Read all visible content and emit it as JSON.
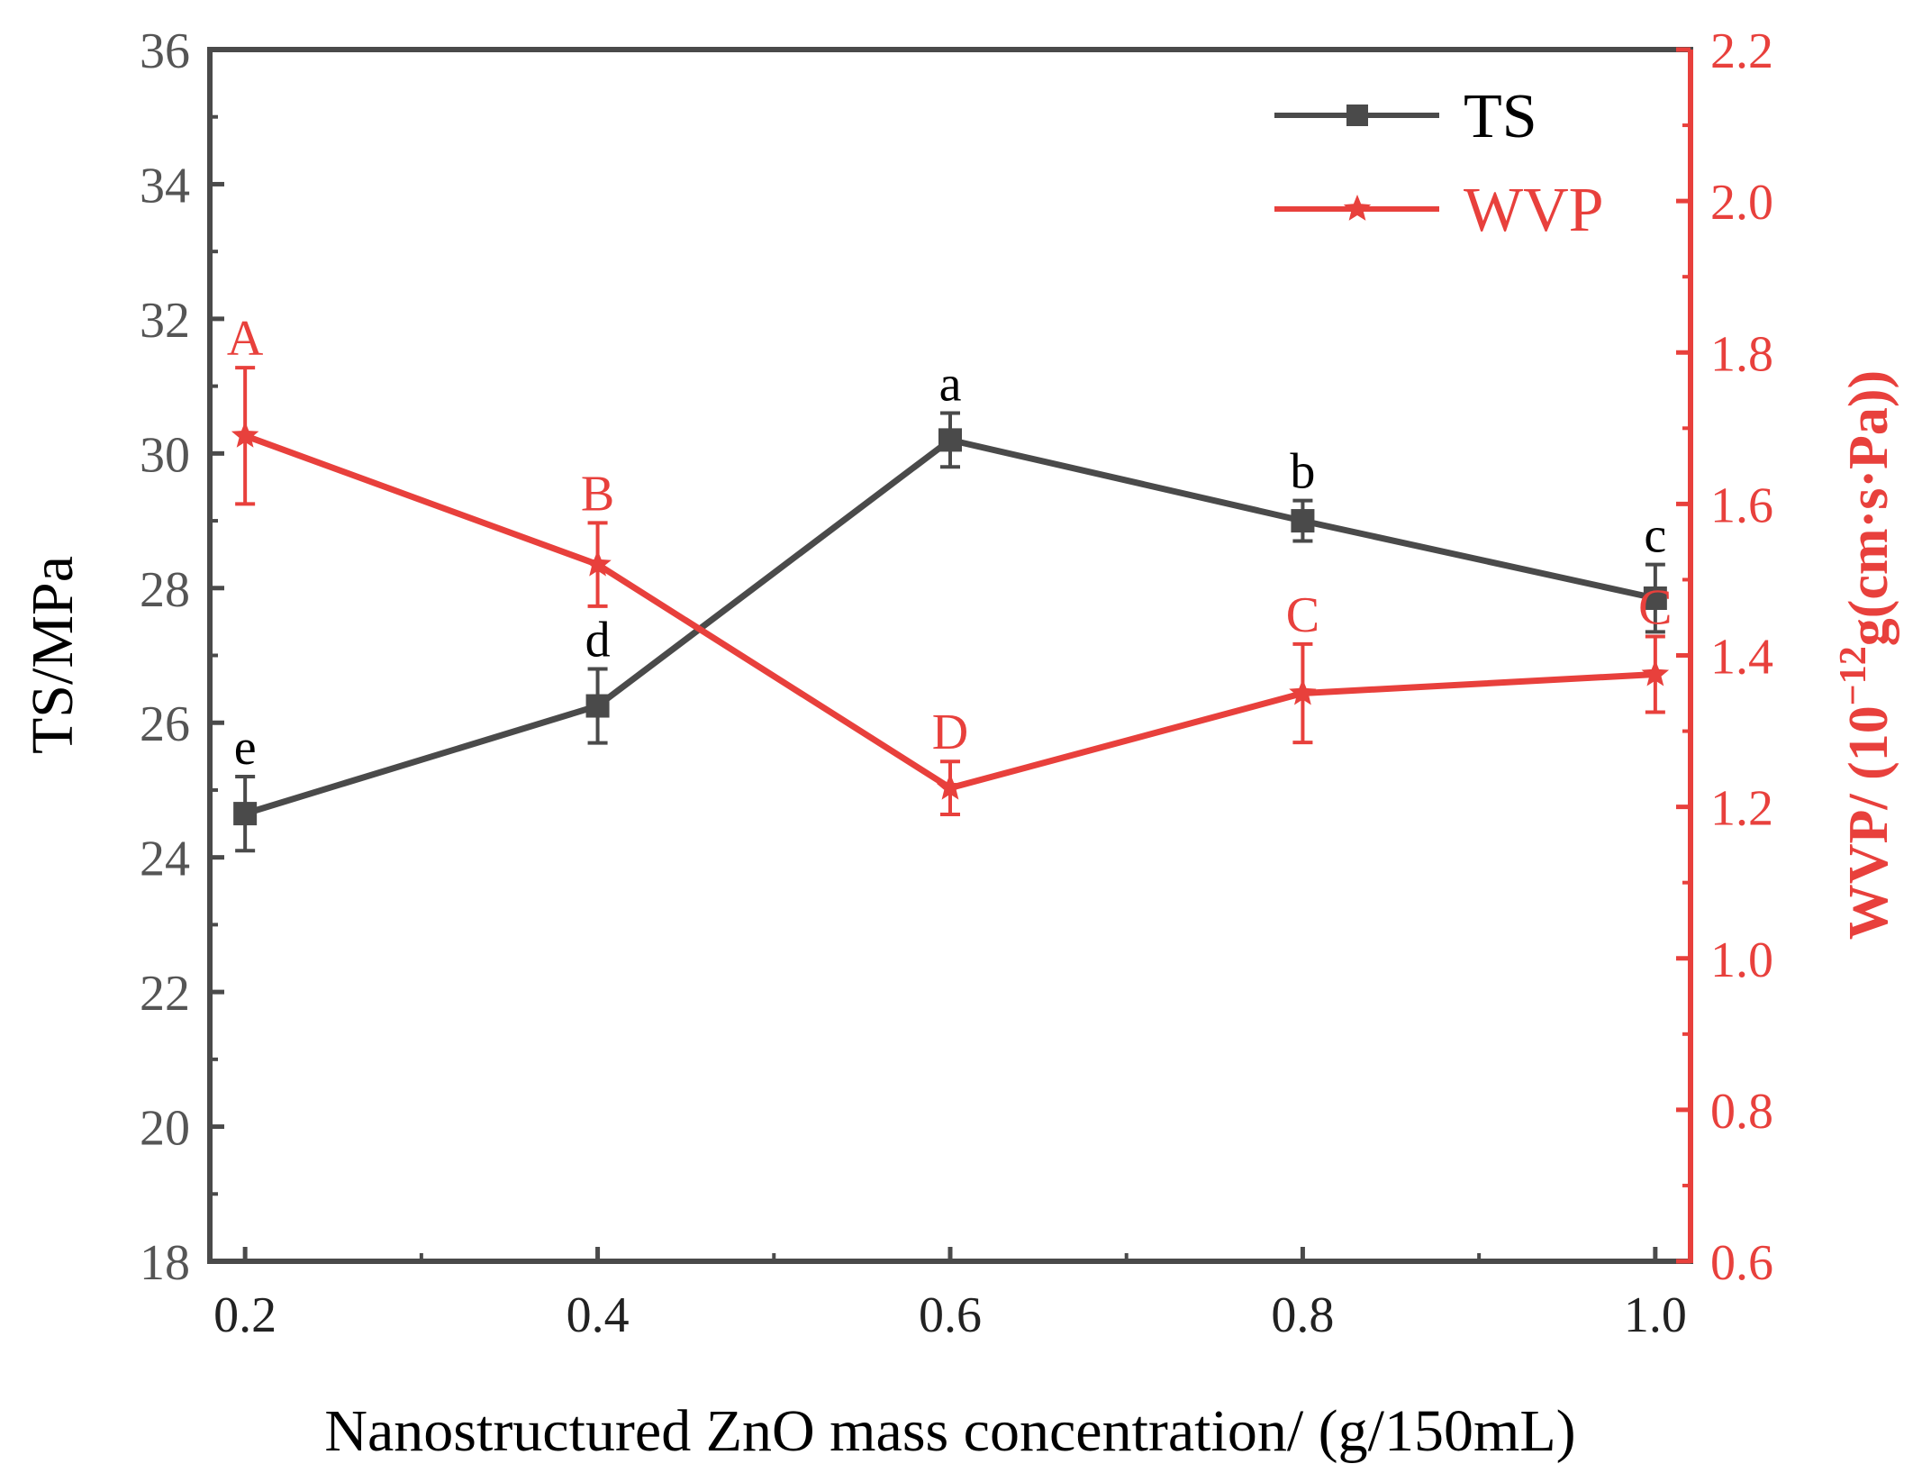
{
  "chart_data": {
    "type": "line",
    "xlabel": "Nanostructured ZnO mass concentration/ (g/150mL)",
    "x": [
      0.2,
      0.4,
      0.6,
      0.8,
      1.0
    ],
    "xlim": [
      0.18,
      1.02
    ],
    "x_ticks": [
      "0.2",
      "0.4",
      "0.6",
      "0.8",
      "1.0"
    ],
    "left_axis": {
      "label": "TS/MPa",
      "ylim": [
        18,
        36
      ],
      "ticks": [
        "18",
        "20",
        "22",
        "24",
        "26",
        "28",
        "30",
        "32",
        "34",
        "36"
      ],
      "color": "#555555"
    },
    "right_axis": {
      "label_main": "WVP/ (10",
      "label_sup": "−12",
      "label_rest": "g(cm·s·Pa))",
      "ylim": [
        0.6,
        2.2
      ],
      "ticks": [
        "0.6",
        "0.8",
        "1.0",
        "1.2",
        "1.4",
        "1.6",
        "1.8",
        "2.0",
        "2.2"
      ],
      "color": "#e8403c"
    },
    "series": [
      {
        "name": "TS",
        "axis": "left",
        "color": "#4a4a4a",
        "marker": "square",
        "values": [
          24.65,
          26.25,
          30.2,
          29.0,
          27.85
        ],
        "errors": [
          0.55,
          0.55,
          0.4,
          0.3,
          0.5
        ],
        "letters": [
          "e",
          "d",
          "a",
          "b",
          "c"
        ]
      },
      {
        "name": "WVP",
        "axis": "right",
        "color": "#e8403c",
        "marker": "star",
        "values": [
          1.69,
          1.52,
          1.225,
          1.35,
          1.375
        ],
        "errors": [
          0.09,
          0.055,
          0.035,
          0.065,
          0.05
        ],
        "letters": [
          "A",
          "B",
          "D",
          "C",
          "C"
        ]
      }
    ]
  }
}
